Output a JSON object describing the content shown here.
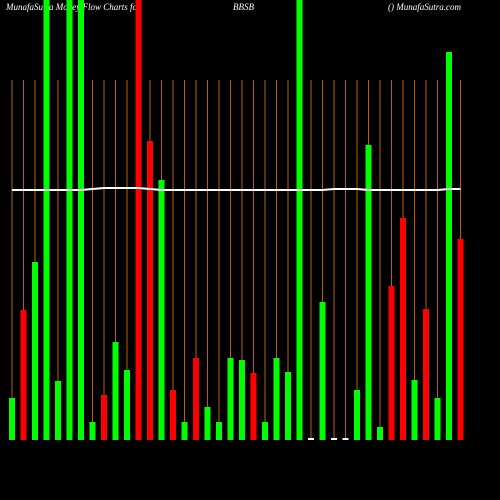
{
  "chart_data": {
    "type": "bar",
    "title": "MunafaSutra  Money Flow  Charts for",
    "subtitle": "BBSB",
    "source": "() MunafaSutra.com",
    "categories": [
      null,
      null,
      null,
      null,
      null,
      null,
      null,
      null,
      null,
      null,
      null,
      null,
      null,
      null,
      null,
      null,
      null,
      null,
      null,
      null,
      null,
      null,
      null,
      null,
      null,
      null,
      null,
      null,
      null,
      null,
      null,
      null,
      null,
      null,
      null,
      null,
      null,
      null,
      null,
      null
    ],
    "values": [
      42,
      130,
      178,
      440,
      59,
      440,
      440,
      18,
      45,
      98,
      70,
      440,
      299,
      260,
      50,
      18,
      82,
      33,
      18,
      82,
      80,
      67,
      18,
      82,
      68,
      440,
      2,
      138,
      2,
      2,
      50,
      295,
      13,
      154,
      222,
      60,
      131,
      42,
      388,
      201
    ],
    "colors": [
      "#00ff00",
      "#ff0000",
      "#00ff00",
      "#00ff00",
      "#00ff00",
      "#00ff00",
      "#00ff00",
      "#00ff00",
      "#ff0000",
      "#00ff00",
      "#00ff00",
      "#ff0000",
      "#ff0000",
      "#00ff00",
      "#ff0000",
      "#00ff00",
      "#ff0000",
      "#00ff00",
      "#00ff00",
      "#00ff00",
      "#00ff00",
      "#ff0000",
      "#00ff00",
      "#00ff00",
      "#00ff00",
      "#00ff00",
      "#ffffff",
      "#00ff00",
      "#ffffff",
      "#ffffff",
      "#00ff00",
      "#00ff00",
      "#00ff00",
      "#ff0000",
      "#ff0000",
      "#00ff00",
      "#ff0000",
      "#00ff00",
      "#00ff00",
      "#ff0000"
    ],
    "line_values": [
      250,
      250,
      250,
      250,
      250,
      250,
      250,
      251,
      252,
      252,
      252,
      252,
      251,
      250,
      250,
      250,
      250,
      250,
      250,
      250,
      250,
      250,
      250,
      250,
      250,
      250,
      250,
      250,
      251,
      251,
      251,
      250,
      250,
      250,
      250,
      250,
      250,
      250,
      251,
      251
    ],
    "line_color": "#ffffff",
    "grid_color": "#b8600a",
    "ylim": [
      0,
      440
    ]
  }
}
